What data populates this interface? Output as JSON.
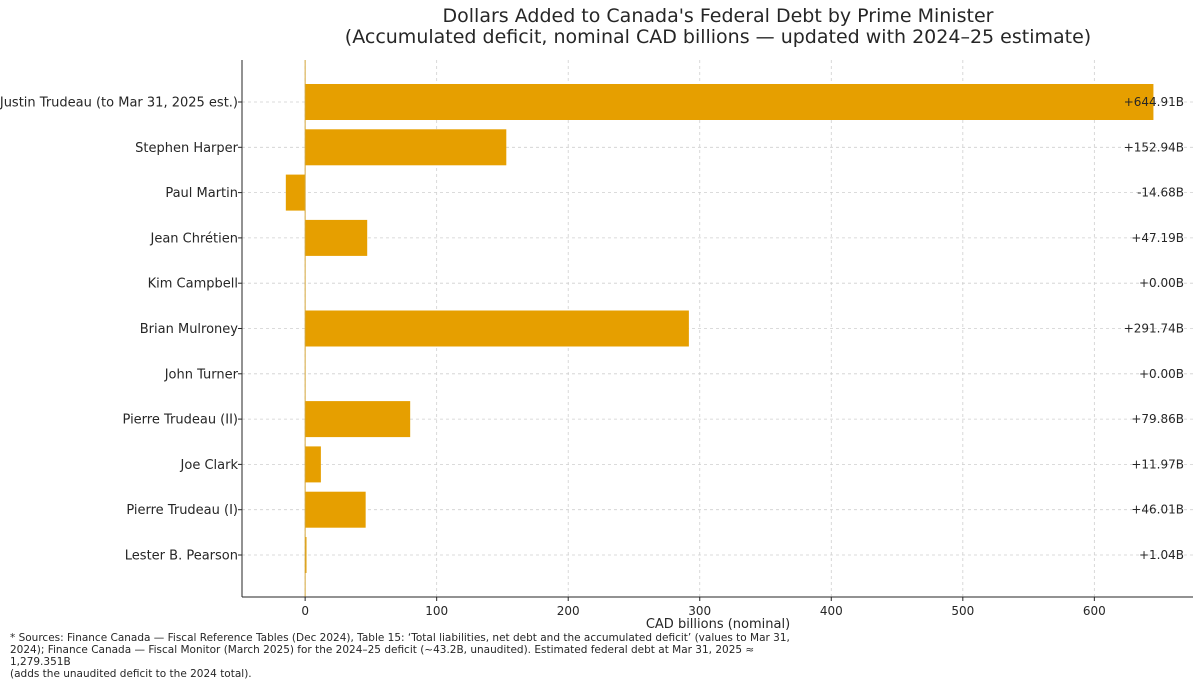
{
  "chart_data": {
    "type": "bar",
    "orientation": "horizontal",
    "title": "Dollars Added to Canada's Federal Debt by Prime Minister",
    "subtitle": "(Accumulated deficit, nominal CAD billions — updated with 2024–25 estimate)",
    "xlabel": "CAD billions (nominal)",
    "ylabel": "",
    "xlim": [
      -48,
      675
    ],
    "xticks": [
      0,
      100,
      200,
      300,
      400,
      500,
      600
    ],
    "grid": true,
    "bar_color": "#E69F00",
    "categories": [
      "Justin Trudeau (to Mar 31, 2025 est.)",
      "Stephen Harper",
      "Paul Martin",
      "Jean Chrétien",
      "Kim Campbell",
      "Brian Mulroney",
      "John Turner",
      "Pierre Trudeau (II)",
      "Joe Clark",
      "Pierre Trudeau (I)",
      "Lester B. Pearson"
    ],
    "values": [
      644.91,
      152.94,
      -14.68,
      47.19,
      0.0,
      291.74,
      0.0,
      79.86,
      11.97,
      46.01,
      1.04
    ],
    "value_labels": [
      "+644.91B",
      "+152.94B",
      "-14.68B",
      "+47.19B",
      "+0.00B",
      "+291.74B",
      "+0.00B",
      "+79.86B",
      "+11.97B",
      "+46.01B",
      "+1.04B"
    ]
  },
  "footnote": {
    "line1": "* Sources: Finance Canada — Fiscal Reference Tables (Dec 2024), Table 15: ‘Total liabilities, net debt and the accumulated deficit’ (values to Mar 31,",
    "line2": "2024); Finance Canada — Fiscal Monitor (March 2025) for the 2024–25 deficit (~43.2B, unaudited). Estimated federal debt at Mar 31, 2025 ≈ 1,279.351B",
    "line3": "(adds the unaudited deficit to the 2024 total)."
  }
}
